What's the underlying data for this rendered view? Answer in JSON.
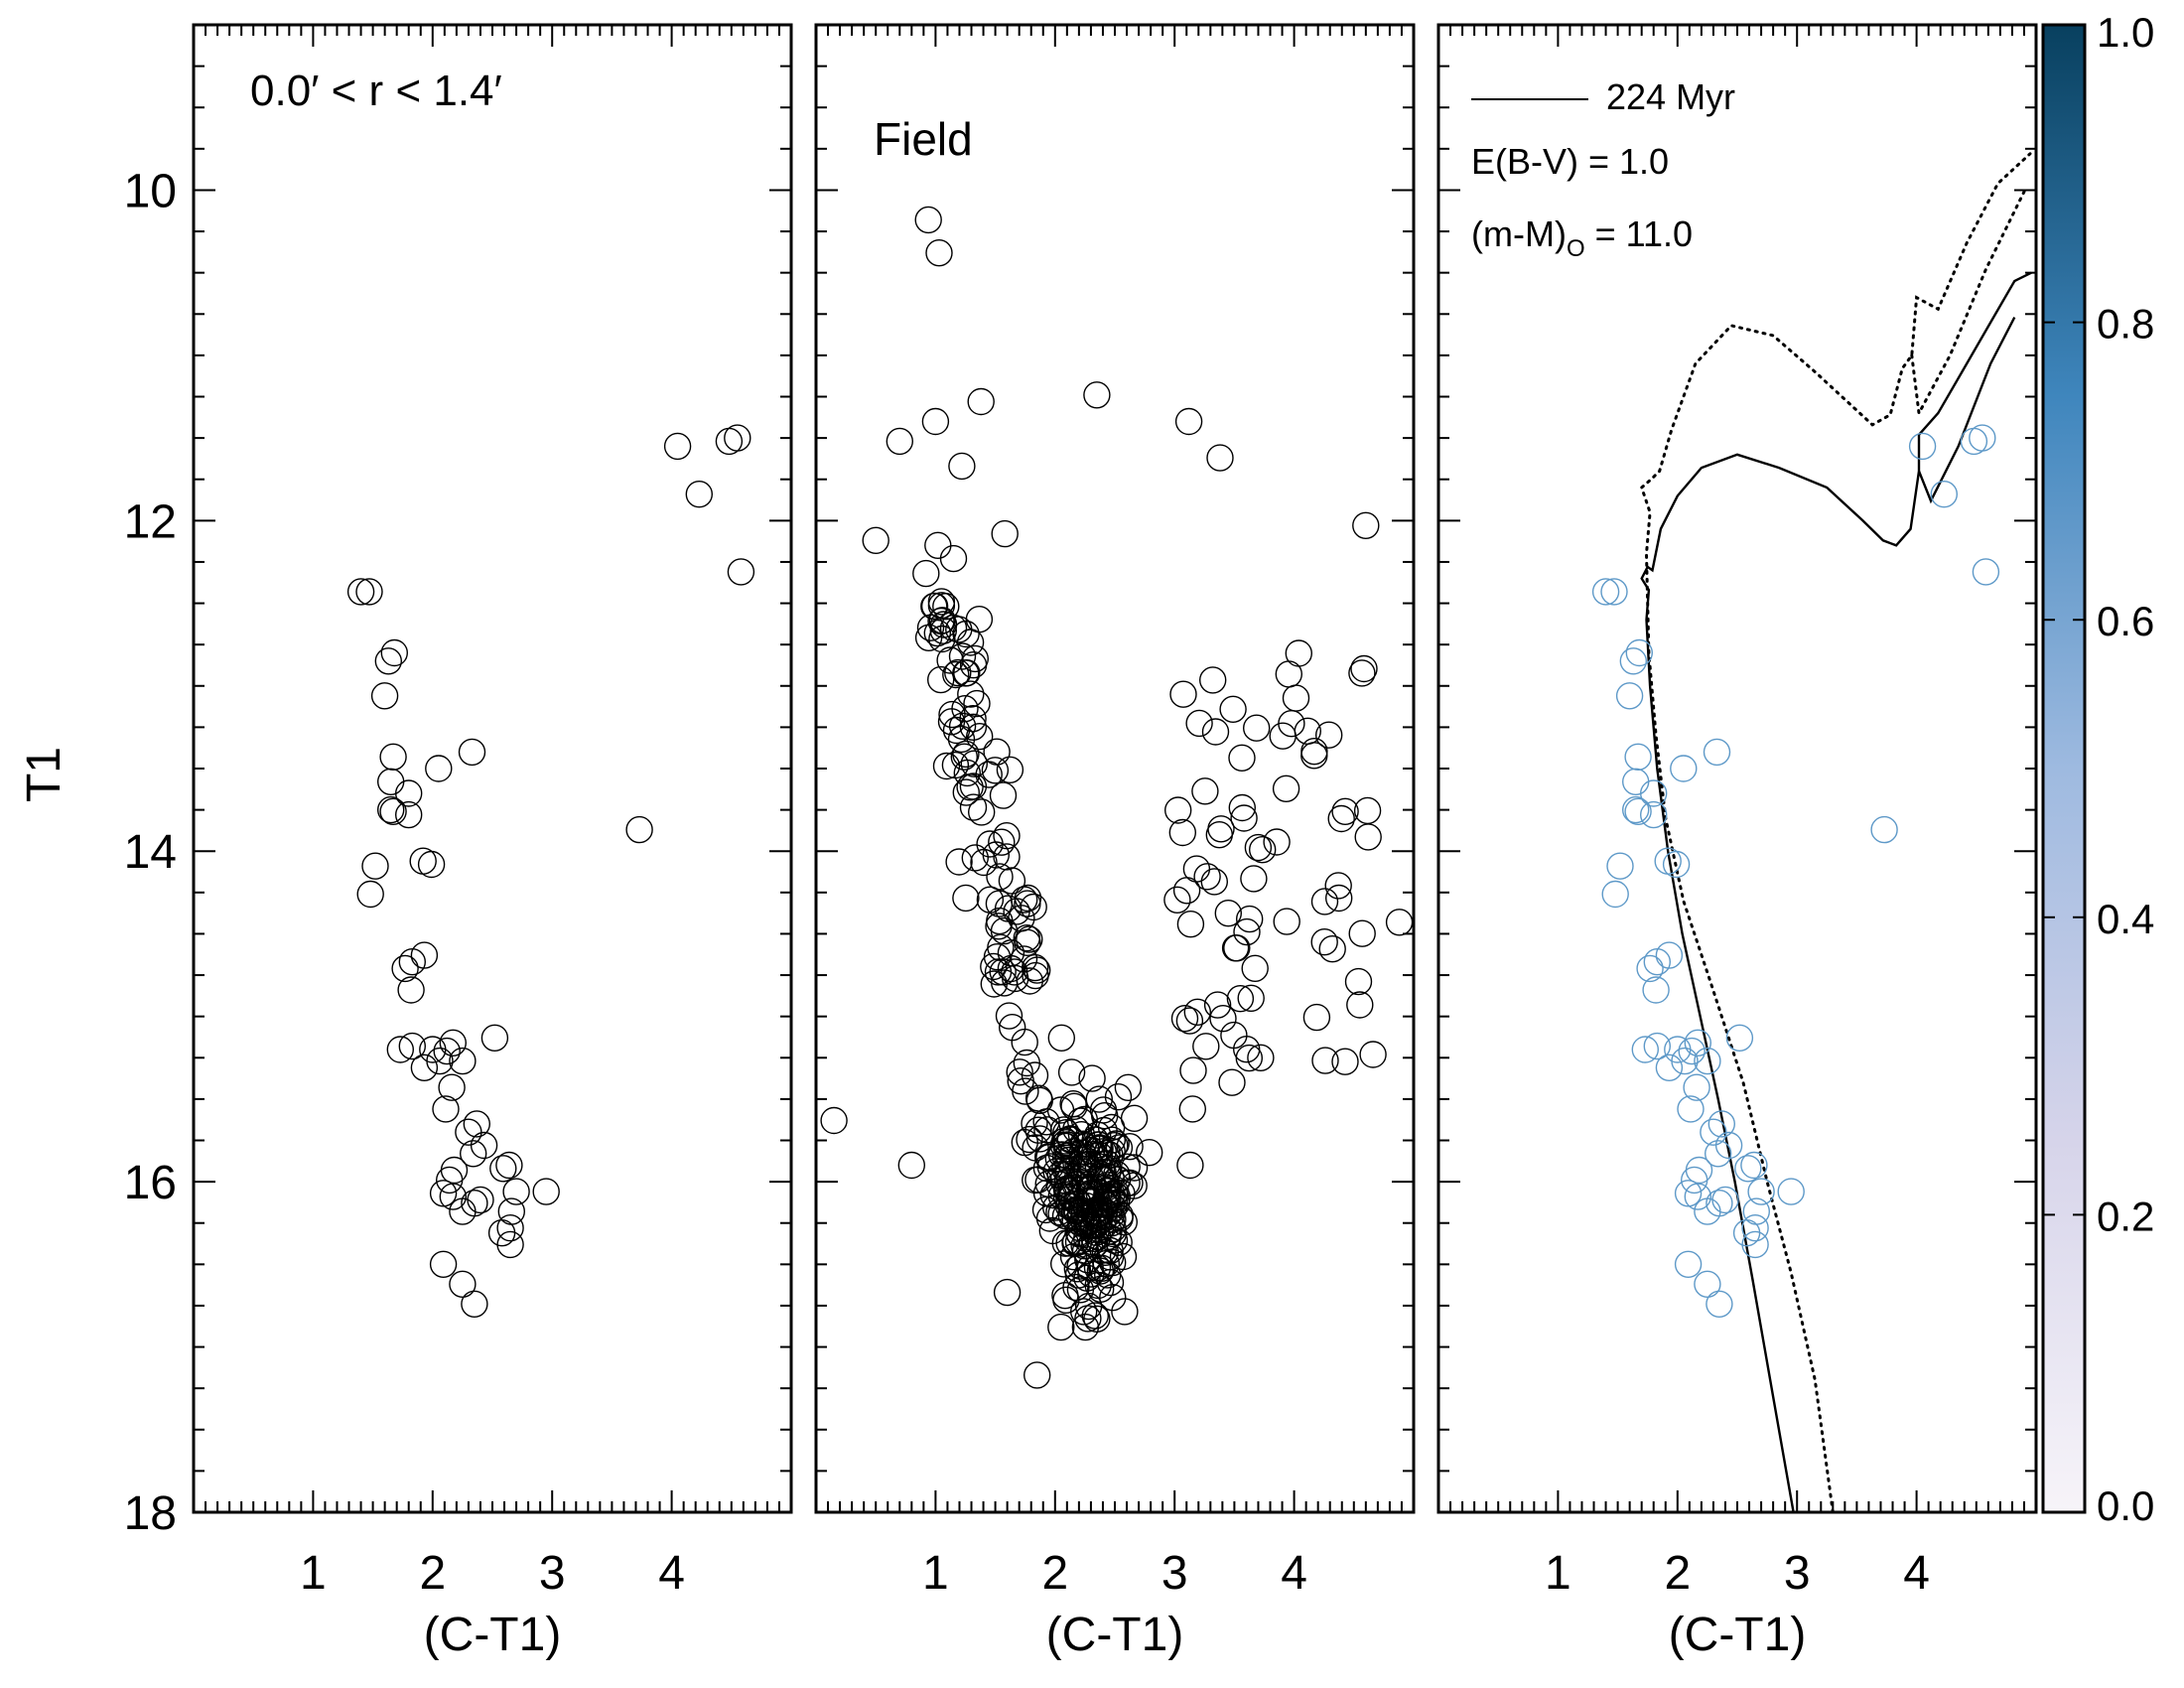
{
  "chart_data": [
    {
      "type": "scatter",
      "panel": "cluster",
      "title": "",
      "annotation": "0.0′ < r < 1.4′",
      "xlabel": "(C-T1)",
      "ylabel": "T1",
      "xlim": [
        0,
        5.0
      ],
      "ylim": [
        18.0,
        9.0
      ],
      "x_ticks": [
        1,
        2,
        3,
        4
      ],
      "y_ticks": [
        10,
        12,
        14,
        16,
        18
      ],
      "points": [
        [
          1.4,
          12.43
        ],
        [
          1.47,
          12.43
        ],
        [
          1.63,
          12.85
        ],
        [
          1.68,
          12.8
        ],
        [
          1.6,
          13.06
        ],
        [
          1.67,
          13.43
        ],
        [
          1.65,
          13.58
        ],
        [
          1.8,
          13.65
        ],
        [
          1.65,
          13.75
        ],
        [
          1.67,
          13.76
        ],
        [
          1.8,
          13.78
        ],
        [
          2.05,
          13.5
        ],
        [
          2.33,
          13.4
        ],
        [
          1.52,
          14.09
        ],
        [
          1.48,
          14.26
        ],
        [
          1.92,
          14.06
        ],
        [
          1.99,
          14.08
        ],
        [
          1.77,
          14.71
        ],
        [
          1.83,
          14.67
        ],
        [
          1.93,
          14.63
        ],
        [
          1.82,
          14.84
        ],
        [
          1.73,
          15.2
        ],
        [
          1.83,
          15.18
        ],
        [
          2.0,
          15.2
        ],
        [
          2.12,
          15.21
        ],
        [
          2.17,
          15.16
        ],
        [
          2.52,
          15.13
        ],
        [
          1.93,
          15.31
        ],
        [
          2.06,
          15.27
        ],
        [
          2.25,
          15.27
        ],
        [
          2.16,
          15.43
        ],
        [
          2.11,
          15.56
        ],
        [
          2.37,
          15.65
        ],
        [
          2.3,
          15.7
        ],
        [
          2.43,
          15.78
        ],
        [
          2.34,
          15.83
        ],
        [
          2.18,
          15.93
        ],
        [
          2.64,
          15.9
        ],
        [
          2.59,
          15.92
        ],
        [
          2.14,
          15.99
        ],
        [
          2.09,
          16.07
        ],
        [
          2.17,
          16.09
        ],
        [
          2.35,
          16.13
        ],
        [
          2.4,
          16.11
        ],
        [
          2.25,
          16.18
        ],
        [
          2.7,
          16.06
        ],
        [
          2.95,
          16.06
        ],
        [
          2.66,
          16.18
        ],
        [
          2.65,
          16.28
        ],
        [
          2.58,
          16.31
        ],
        [
          2.65,
          16.38
        ],
        [
          2.09,
          16.5
        ],
        [
          2.25,
          16.62
        ],
        [
          2.35,
          16.74
        ],
        [
          3.73,
          13.87
        ],
        [
          4.05,
          11.55
        ],
        [
          4.55,
          11.5
        ],
        [
          4.48,
          11.52
        ],
        [
          4.23,
          11.84
        ],
        [
          4.58,
          12.31
        ]
      ]
    },
    {
      "type": "scatter",
      "panel": "field",
      "annotation": "Field",
      "xlabel": "(C-T1)",
      "ylabel": "",
      "xlim": [
        0,
        5.0
      ],
      "ylim": [
        18.0,
        9.0
      ],
      "x_ticks": [
        1,
        2,
        3,
        4
      ],
      "n_points": 467
    },
    {
      "type": "scatter",
      "panel": "cluster-membership",
      "xlabel": "(C-T1)",
      "ylabel": "",
      "xlim": [
        0,
        5.0
      ],
      "ylim": [
        18.0,
        9.0
      ],
      "x_ticks": [
        1,
        2,
        3,
        4
      ],
      "legend": {
        "line_label": "224 Myr",
        "reddening": "E(B-V) = 1.0",
        "distance_main": "(m-M)",
        "distance_sub": "O",
        "distance_value": " = 11.0"
      },
      "isochrone_solid": [
        [
          2.97,
          18.0
        ],
        [
          2.8,
          17.3
        ],
        [
          2.63,
          16.6
        ],
        [
          2.48,
          16.0
        ],
        [
          2.34,
          15.5
        ],
        [
          2.19,
          15.0
        ],
        [
          2.04,
          14.5
        ],
        [
          1.92,
          14.0
        ],
        [
          1.83,
          13.5
        ],
        [
          1.77,
          13.0
        ],
        [
          1.74,
          12.6
        ],
        [
          1.76,
          12.42
        ],
        [
          1.7,
          12.35
        ],
        [
          1.75,
          12.28
        ],
        [
          1.79,
          12.3
        ],
        [
          1.86,
          12.05
        ],
        [
          2.0,
          11.85
        ],
        [
          2.2,
          11.68
        ],
        [
          2.5,
          11.6
        ],
        [
          2.85,
          11.68
        ],
        [
          3.25,
          11.8
        ],
        [
          3.55,
          12.0
        ],
        [
          3.72,
          12.12
        ],
        [
          3.83,
          12.15
        ],
        [
          3.95,
          12.05
        ],
        [
          4.02,
          11.7
        ],
        [
          4.02,
          11.48
        ],
        [
          4.18,
          11.35
        ],
        [
          4.38,
          11.1
        ],
        [
          4.62,
          10.8
        ],
        [
          4.82,
          10.55
        ],
        [
          4.96,
          10.5
        ]
      ],
      "isochrone_solid_2": [
        [
          4.02,
          11.7
        ],
        [
          4.12,
          11.88
        ],
        [
          4.35,
          11.55
        ],
        [
          4.62,
          11.05
        ],
        [
          4.82,
          10.77
        ]
      ],
      "isochrone_dotted": [
        [
          3.3,
          18.0
        ],
        [
          3.15,
          17.2
        ],
        [
          2.95,
          16.55
        ],
        [
          2.75,
          16.0
        ],
        [
          2.55,
          15.4
        ],
        [
          2.28,
          14.8
        ],
        [
          2.05,
          14.3
        ],
        [
          1.9,
          13.8
        ],
        [
          1.82,
          13.3
        ],
        [
          1.76,
          12.8
        ],
        [
          1.74,
          12.2
        ],
        [
          1.77,
          11.95
        ],
        [
          1.7,
          11.8
        ],
        [
          1.78,
          11.75
        ],
        [
          1.85,
          11.7
        ],
        [
          1.95,
          11.45
        ],
        [
          2.15,
          11.05
        ],
        [
          2.45,
          10.82
        ],
        [
          2.8,
          10.88
        ],
        [
          3.15,
          11.1
        ],
        [
          3.45,
          11.3
        ],
        [
          3.63,
          11.42
        ],
        [
          3.78,
          11.36
        ],
        [
          3.88,
          11.08
        ],
        [
          3.96,
          11.0
        ],
        [
          4.0,
          10.65
        ],
        [
          4.18,
          10.72
        ],
        [
          4.42,
          10.32
        ],
        [
          4.68,
          9.96
        ],
        [
          4.95,
          9.78
        ]
      ],
      "isochrone_dotted_2": [
        [
          3.96,
          11.0
        ],
        [
          4.02,
          11.35
        ],
        [
          4.28,
          11.0
        ],
        [
          4.58,
          10.48
        ],
        [
          4.92,
          9.98
        ]
      ]
    }
  ],
  "colorbar": {
    "ticks": [
      "0.0",
      "0.2",
      "0.4",
      "0.6",
      "0.8",
      "1.0"
    ],
    "color_low": "#f7f4f9",
    "color_mid": "#7fa6d0",
    "color_high": "#08405f"
  },
  "colors": {
    "field_point": "#000000",
    "cluster_point": "#000000",
    "member_point": "#5e99c8"
  }
}
